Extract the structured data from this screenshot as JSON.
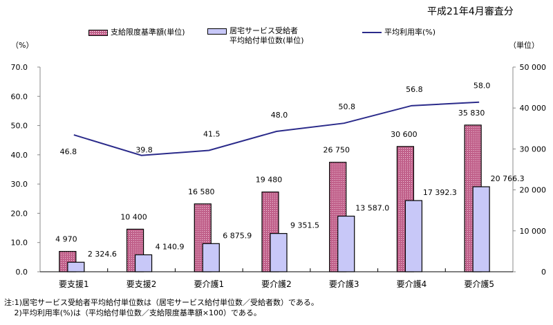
{
  "chart_data": {
    "type": "bar",
    "date_note": "平成21年4月審査分",
    "left_unit": "（%）",
    "right_unit": "（単位）",
    "categories": [
      "要支援1",
      "要支援2",
      "要介護1",
      "要介護2",
      "要介護3",
      "要介護4",
      "要介護5"
    ],
    "left_ylim": [
      0,
      70
    ],
    "left_ticks": [
      "0.0",
      "10.0",
      "20.0",
      "30.0",
      "40.0",
      "50.0",
      "60.0",
      "70.0"
    ],
    "right_ylim": [
      0,
      50000
    ],
    "right_ticks": [
      "0",
      "10 000",
      "20 000",
      "30 000",
      "40 000",
      "50 000"
    ],
    "series": [
      {
        "name": "支給限度基準額(単位)",
        "axis": "right",
        "kind": "bar",
        "color": "#c0608a",
        "values": [
          4970,
          10400,
          16580,
          19480,
          26750,
          30600,
          35830
        ],
        "labels": [
          "4 970",
          "10 400",
          "16 580",
          "19 480",
          "26 750",
          "30 600",
          "35 830"
        ]
      },
      {
        "name_line1": "居宅サービス受給者",
        "name_line2": "平均給付単位数(単位)",
        "axis": "right",
        "kind": "bar",
        "color": "#c8c8f8",
        "values": [
          2324.6,
          4140.9,
          6875.9,
          9351.5,
          13587.0,
          17392.3,
          20766.3
        ],
        "labels": [
          "2 324.6",
          "4 140.9",
          "6 875.9",
          "9 351.5",
          "13 587.0",
          "17 392.3",
          "20 766.3"
        ]
      },
      {
        "name": "平均利用率(%)",
        "axis": "left",
        "kind": "line",
        "color": "#2a2a8a",
        "values": [
          46.8,
          39.8,
          41.5,
          48.0,
          50.8,
          56.8,
          58.0
        ],
        "labels": [
          "46.8",
          "39.8",
          "41.5",
          "48.0",
          "50.8",
          "56.8",
          "58.0"
        ]
      }
    ],
    "notes": [
      "注:1)居宅サービス受給者平均給付単位数は（居宅サービス給付単位数／受給者数）である。",
      "　 2)平均利用率(%)は（平均給付単位数／支給限度基準額×100）である。"
    ]
  }
}
